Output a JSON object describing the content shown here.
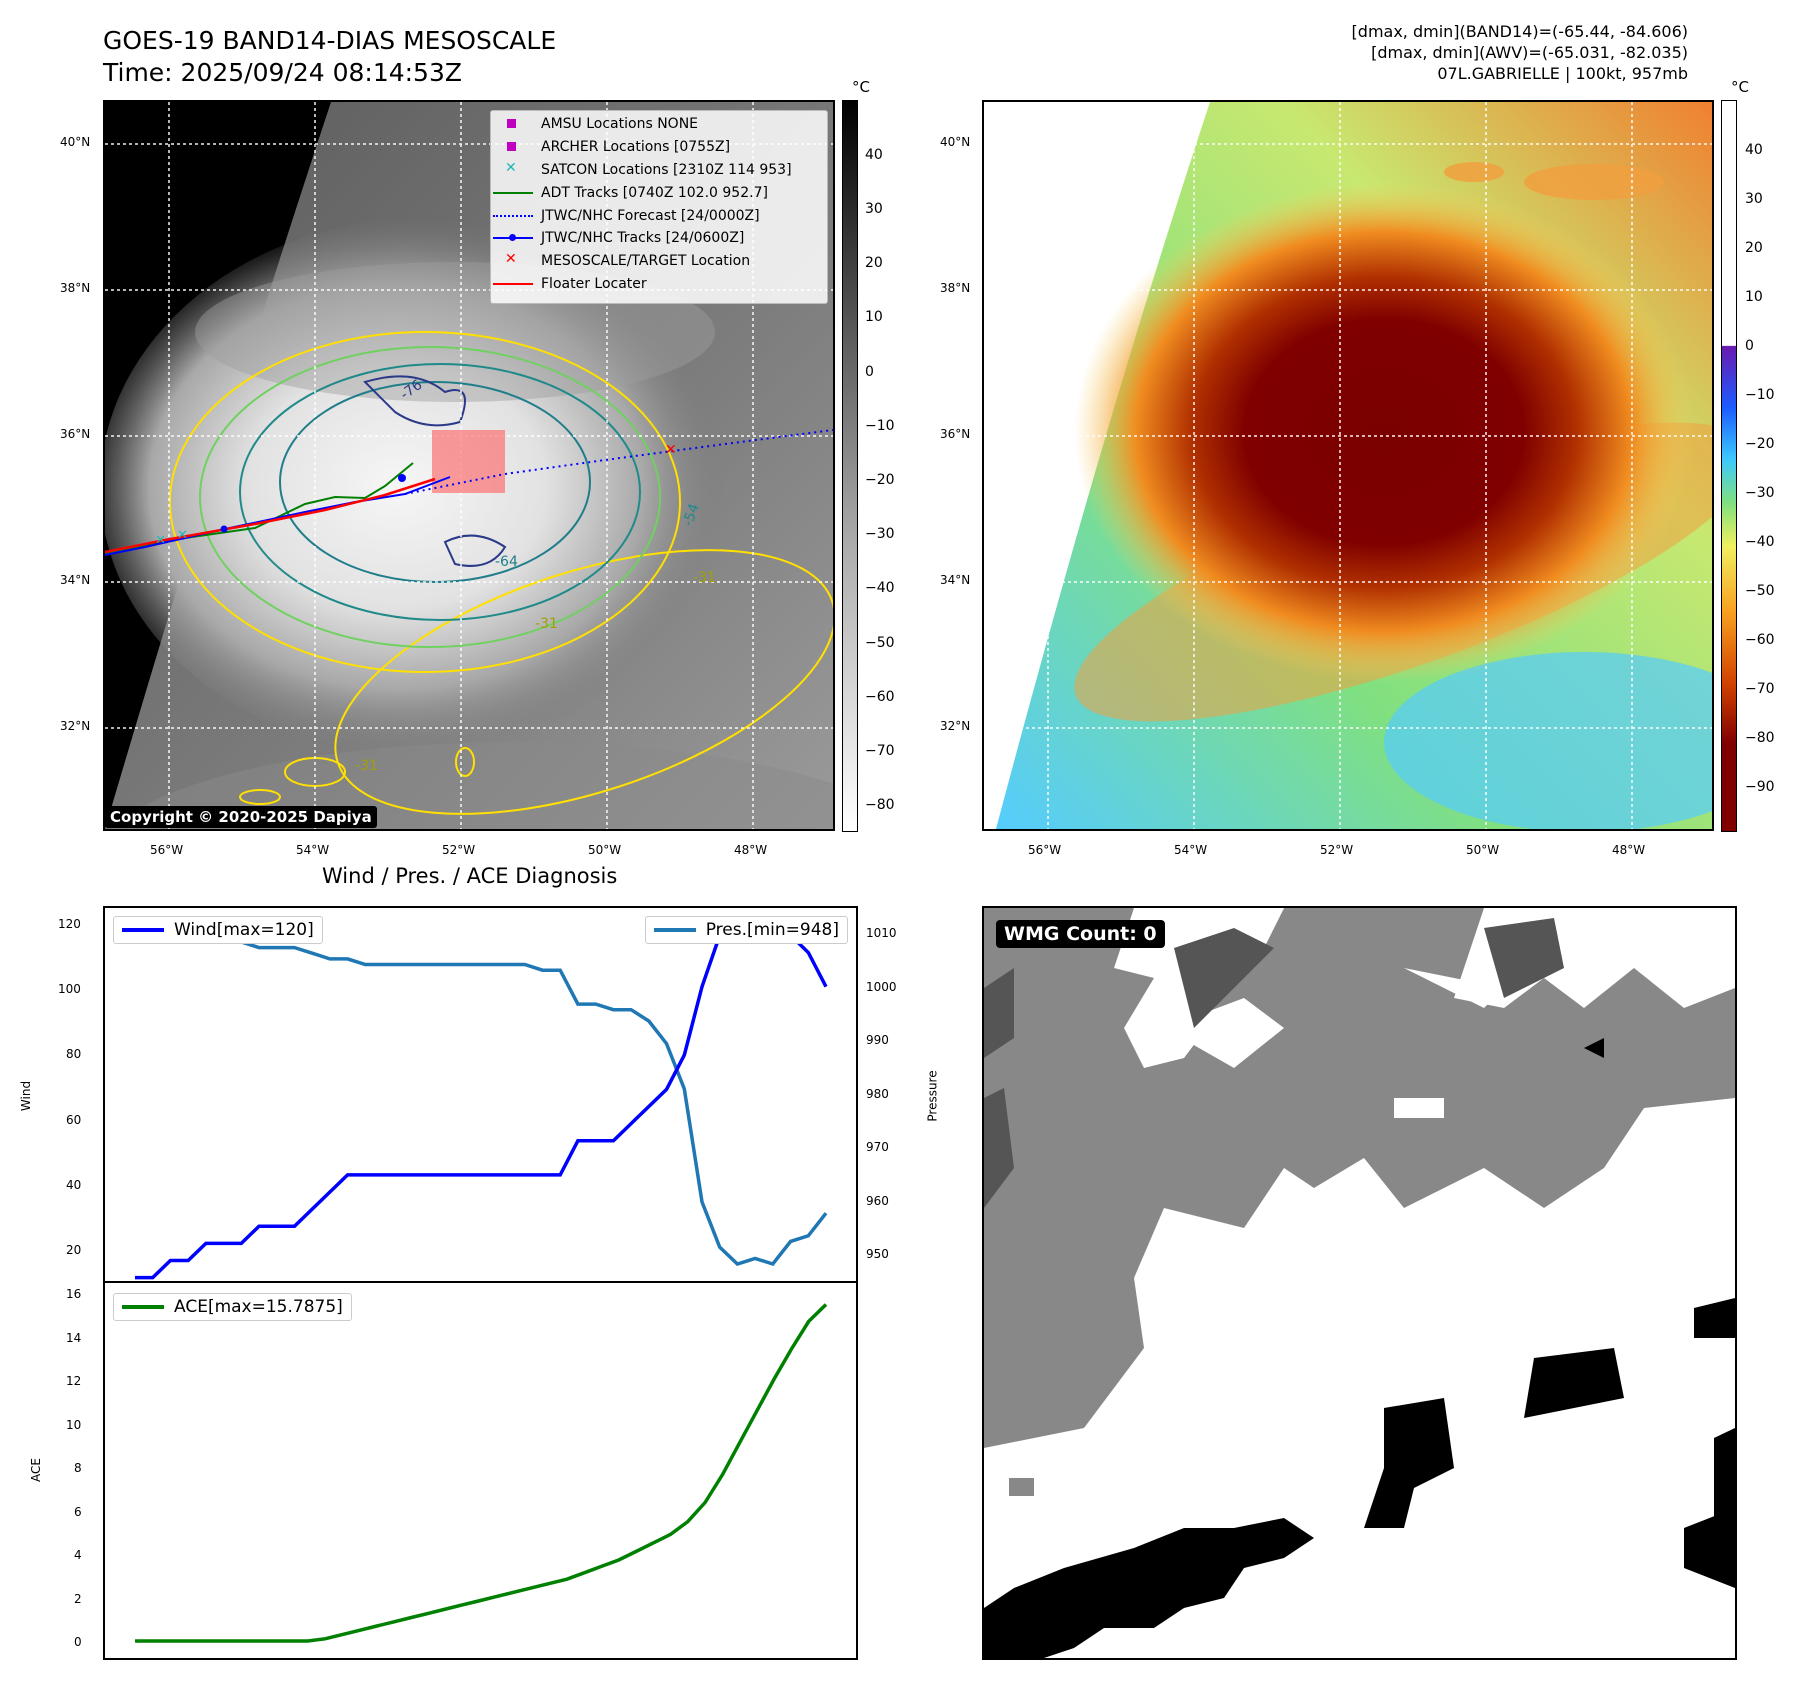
{
  "header": {
    "title_line1": "GOES-19 BAND14-DIAS MESOSCALE",
    "title_line2": "Time: 2025/09/24 08:14:53Z",
    "meta_line1": "[dmax, dmin](BAND14)=(-65.44, -84.606)",
    "meta_line2": "[dmax, dmin](AWV)=(-65.031, -82.035)",
    "meta_line3": "07L.GABRIELLE | 100kt, 957mb"
  },
  "map": {
    "lat_labels": [
      "40°N",
      "38°N",
      "36°N",
      "34°N",
      "32°N"
    ],
    "lon_labels": [
      "56°W",
      "54°W",
      "52°W",
      "50°W",
      "48°W"
    ],
    "copyright": "Copyright © 2020-2025 Dapiya",
    "contour_labels": [
      "-76",
      "-64",
      "-54",
      "-31",
      "-31",
      "-31"
    ],
    "legend": [
      {
        "label": "AMSU Locations NONE",
        "color": "#c000c0",
        "marker": "square"
      },
      {
        "label": "ARCHER Locations [0755Z]",
        "color": "#c000c0",
        "marker": "square"
      },
      {
        "label": "SATCON Locations [2310Z 114 953]",
        "color": "#20b8b8",
        "marker": "x"
      },
      {
        "label": "ADT Tracks [0740Z 102.0 952.7]",
        "color": "#008000",
        "marker": "line"
      },
      {
        "label": "JTWC/NHC Forecast [24/0000Z]",
        "color": "#0000ff",
        "marker": "dotted"
      },
      {
        "label": "JTWC/NHC Tracks [24/0600Z]",
        "color": "#0000ff",
        "marker": "line-dot"
      },
      {
        "label": "MESOSCALE/TARGET Location",
        "color": "#ff0000",
        "marker": "x"
      },
      {
        "label": "Floater Locater",
        "color": "#ff0000",
        "marker": "line"
      }
    ]
  },
  "colorbars": {
    "unit": "°C",
    "gray_ticks": [
      "40",
      "30",
      "20",
      "10",
      "0",
      "−10",
      "−20",
      "−30",
      "−40",
      "−50",
      "−60",
      "−70",
      "−80"
    ],
    "color_ticks": [
      "40",
      "30",
      "20",
      "10",
      "0",
      "−10",
      "−20",
      "−30",
      "−40",
      "−50",
      "−60",
      "−70",
      "−80",
      "−90"
    ]
  },
  "diagnosis": {
    "title": "Wind / Pres. / ACE Diagnosis",
    "wind_legend": "Wind[max=120]",
    "pres_legend": "Pres.[min=948]",
    "ace_legend": "ACE[max=15.7875]",
    "wind_axis_label": "Wind",
    "pres_axis_label": "Pressure",
    "ace_axis_label": "ACE",
    "wind_ticks": [
      "120",
      "100",
      "80",
      "60",
      "40",
      "20"
    ],
    "pres_ticks": [
      "1010",
      "1000",
      "990",
      "980",
      "970",
      "960",
      "950"
    ],
    "ace_ticks": [
      "16",
      "14",
      "12",
      "10",
      "8",
      "6",
      "4",
      "2",
      "0"
    ]
  },
  "wmg": {
    "badge": "WMG Count: 0"
  },
  "chart_data": [
    {
      "type": "line",
      "title": "Wind / Pres. / ACE Diagnosis",
      "ylabel": "Wind",
      "ylim": [
        14,
        123
      ],
      "series": [
        {
          "name": "Wind[max=120]",
          "color": "#0000ff",
          "values": [
            15,
            15,
            20,
            20,
            25,
            25,
            25,
            30,
            30,
            30,
            35,
            40,
            45,
            45,
            45,
            45,
            45,
            45,
            45,
            45,
            45,
            45,
            45,
            45,
            45,
            55,
            55,
            55,
            60,
            65,
            70,
            80,
            100,
            115,
            120,
            120,
            120,
            115,
            110,
            100
          ]
        }
      ]
    },
    {
      "type": "line",
      "ylabel": "Pressure",
      "ylim": [
        946,
        1012
      ],
      "series": [
        {
          "name": "Pres.[min=948]",
          "color": "#1f77b4",
          "values": [
            1010,
            1010,
            1009,
            1009,
            1008,
            1007,
            1006,
            1005,
            1005,
            1005,
            1004,
            1003,
            1003,
            1002,
            1002,
            1002,
            1002,
            1002,
            1002,
            1002,
            1002,
            1002,
            1002,
            1001,
            1001,
            995,
            995,
            994,
            994,
            992,
            988,
            980,
            960,
            952,
            949,
            950,
            949,
            953,
            954,
            958
          ]
        }
      ]
    },
    {
      "type": "line",
      "ylabel": "ACE",
      "ylim": [
        -0.8,
        16.8
      ],
      "series": [
        {
          "name": "ACE[max=15.7875]",
          "color": "#008000",
          "values": [
            0,
            0,
            0,
            0,
            0,
            0,
            0,
            0,
            0,
            0,
            0,
            0.1,
            0.3,
            0.5,
            0.7,
            0.9,
            1.1,
            1.3,
            1.5,
            1.7,
            1.9,
            2.1,
            2.3,
            2.5,
            2.7,
            2.9,
            3.2,
            3.5,
            3.8,
            4.2,
            4.6,
            5.0,
            5.6,
            6.5,
            7.8,
            9.3,
            10.8,
            12.3,
            13.7,
            15.0,
            15.79
          ]
        }
      ]
    }
  ]
}
